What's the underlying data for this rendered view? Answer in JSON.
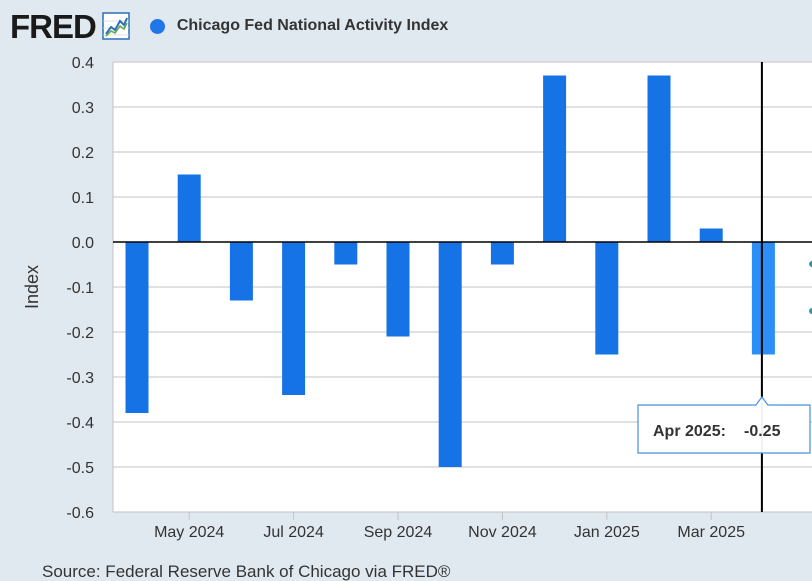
{
  "brand": {
    "logo_text": "FRED",
    "logo_icon": "trend-line-icon"
  },
  "legend": {
    "series_name": "Chicago Fed National Activity Index",
    "color": "#1f77e8"
  },
  "source": "Source: Federal Reserve Bank of Chicago via FRED®",
  "tooltip": {
    "label": "Apr 2025:",
    "value": "-0.25"
  },
  "colors": {
    "bar": "#1673e6",
    "bar_highlight": "#2b8ff5",
    "gridline": "#c3c3c3",
    "plot_background": "#ffffff",
    "page_background": "#e1e9f0",
    "zero_line": "#000000"
  },
  "chart_data": {
    "type": "bar",
    "title": "",
    "ylabel": "Index",
    "xlabel": "",
    "ylim": [
      -0.6,
      0.4
    ],
    "yticks": [
      "0.4",
      "0.3",
      "0.2",
      "0.1",
      "0.0",
      "-0.1",
      "-0.2",
      "-0.3",
      "-0.4",
      "-0.5",
      "-0.6"
    ],
    "grid": true,
    "legend_position": "top-left",
    "categories": [
      "Apr 2024",
      "May 2024",
      "Jun 2024",
      "Jul 2024",
      "Aug 2024",
      "Sep 2024",
      "Oct 2024",
      "Nov 2024",
      "Dec 2024",
      "Jan 2025",
      "Feb 2025",
      "Mar 2025",
      "Apr 2025"
    ],
    "x_tick_labels": [
      "May 2024",
      "Jul 2024",
      "Sep 2024",
      "Nov 2024",
      "Jan 2025",
      "Mar 2025"
    ],
    "series": [
      {
        "name": "Chicago Fed National Activity Index",
        "values": [
          -0.38,
          0.15,
          -0.13,
          -0.34,
          -0.05,
          -0.21,
          -0.5,
          -0.05,
          0.37,
          -0.25,
          0.37,
          0.03,
          -0.25
        ]
      }
    ],
    "highlighted": "Apr 2025"
  }
}
